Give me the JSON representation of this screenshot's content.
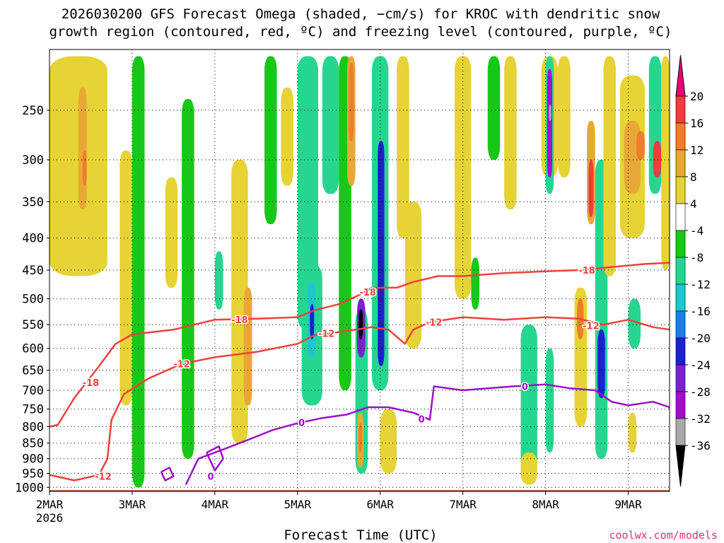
{
  "chart_data": {
    "type": "heatmap",
    "title_line1": "2026030200 GFS Forecast Omega (shaded, −cm/s) for KROC with dendritic snow",
    "title_line2": "growth region (contoured, red, ºC) and freezing level (contoured, purple, ºC)",
    "xlabel": "Forecast Time (UTC)",
    "ylabel": "",
    "credit": "coolwx.com/models",
    "x_start_label": "2MAR",
    "x_start_year": "2026",
    "x_ticks": [
      {
        "day": 0,
        "label": "2MAR"
      },
      {
        "day": 1,
        "label": "3MAR"
      },
      {
        "day": 2,
        "label": "4MAR"
      },
      {
        "day": 3,
        "label": "5MAR"
      },
      {
        "day": 4,
        "label": "6MAR"
      },
      {
        "day": 5,
        "label": "7MAR"
      },
      {
        "day": 6,
        "label": "8MAR"
      },
      {
        "day": 7,
        "label": "9MAR"
      }
    ],
    "xlim_days": [
      0,
      7.5
    ],
    "y_ticks": [
      250,
      300,
      350,
      400,
      450,
      500,
      550,
      600,
      650,
      700,
      750,
      800,
      850,
      900,
      950,
      1000
    ],
    "ylim_hpa": [
      200,
      1015
    ],
    "y_scale": "log",
    "colorbar": {
      "labels": [
        "20",
        "16",
        "12",
        "8",
        "4",
        "-4",
        "-8",
        "-12",
        "-16",
        "-20",
        "-24",
        "-28",
        "-32",
        "-36"
      ],
      "colors": [
        "#ee0077",
        "#ef3c3c",
        "#ee7d2c",
        "#e8a836",
        "#e6d336",
        "#ffffff",
        "#18c818",
        "#26d690",
        "#1fc6cc",
        "#1e7fe6",
        "#1c22cc",
        "#7a22cc",
        "#a010c8",
        "#a8a8a8",
        "#000000"
      ]
    },
    "ground_color": "#a05028",
    "shading_regions": [
      {
        "d0": 0.0,
        "d1": 0.7,
        "p0": 205,
        "p1": 460,
        "value": 5
      },
      {
        "d0": 0.35,
        "d1": 0.45,
        "p0": 230,
        "p1": 360,
        "value": 10
      },
      {
        "d0": 0.4,
        "d1": 0.45,
        "p0": 290,
        "p1": 330,
        "value": 14
      },
      {
        "d0": 0.85,
        "d1": 1.0,
        "p0": 290,
        "p1": 740,
        "value": 5
      },
      {
        "d0": 1.0,
        "d1": 1.15,
        "p0": 205,
        "p1": 1000,
        "value": -6
      },
      {
        "d0": 1.4,
        "d1": 1.55,
        "p0": 320,
        "p1": 480,
        "value": 5
      },
      {
        "d0": 1.6,
        "d1": 1.75,
        "p0": 240,
        "p1": 900,
        "value": -6
      },
      {
        "d0": 2.0,
        "d1": 2.1,
        "p0": 420,
        "p1": 520,
        "value": -10
      },
      {
        "d0": 2.2,
        "d1": 2.4,
        "p0": 300,
        "p1": 850,
        "value": 6
      },
      {
        "d0": 2.35,
        "d1": 2.45,
        "p0": 480,
        "p1": 740,
        "value": 10
      },
      {
        "d0": 2.6,
        "d1": 2.75,
        "p0": 205,
        "p1": 380,
        "value": -6
      },
      {
        "d0": 2.8,
        "d1": 2.95,
        "p0": 230,
        "p1": 330,
        "value": 5
      },
      {
        "d0": 3.0,
        "d1": 3.25,
        "p0": 205,
        "p1": 560,
        "value": -8
      },
      {
        "d0": 3.05,
        "d1": 3.3,
        "p0": 440,
        "p1": 740,
        "value": -8
      },
      {
        "d0": 3.12,
        "d1": 3.22,
        "p0": 470,
        "p1": 620,
        "value": -15
      },
      {
        "d0": 3.15,
        "d1": 3.2,
        "p0": 510,
        "p1": 580,
        "value": -22
      },
      {
        "d0": 3.3,
        "d1": 3.5,
        "p0": 205,
        "p1": 340,
        "value": -8
      },
      {
        "d0": 3.5,
        "d1": 3.65,
        "p0": 205,
        "p1": 700,
        "value": -6
      },
      {
        "d0": 3.6,
        "d1": 3.7,
        "p0": 205,
        "p1": 330,
        "value": 10
      },
      {
        "d0": 3.62,
        "d1": 3.68,
        "p0": 210,
        "p1": 280,
        "value": 14
      },
      {
        "d0": 3.7,
        "d1": 3.85,
        "p0": 520,
        "p1": 950,
        "value": -8
      },
      {
        "d0": 3.72,
        "d1": 3.82,
        "p0": 500,
        "p1": 620,
        "value": -24
      },
      {
        "d0": 3.74,
        "d1": 3.79,
        "p0": 520,
        "p1": 580,
        "value": -40
      },
      {
        "d0": 3.72,
        "d1": 3.8,
        "p0": 760,
        "p1": 930,
        "value": 10
      },
      {
        "d0": 3.74,
        "d1": 3.78,
        "p0": 790,
        "p1": 880,
        "value": 14
      },
      {
        "d0": 3.9,
        "d1": 4.1,
        "p0": 205,
        "p1": 700,
        "value": -10
      },
      {
        "d0": 3.97,
        "d1": 4.05,
        "p0": 280,
        "p1": 640,
        "value": -22
      },
      {
        "d0": 4.0,
        "d1": 4.2,
        "p0": 750,
        "p1": 950,
        "value": 6
      },
      {
        "d0": 4.2,
        "d1": 4.35,
        "p0": 205,
        "p1": 400,
        "value": 5
      },
      {
        "d0": 4.3,
        "d1": 4.5,
        "p0": 350,
        "p1": 600,
        "value": 5
      },
      {
        "d0": 4.9,
        "d1": 5.1,
        "p0": 205,
        "p1": 500,
        "value": 5
      },
      {
        "d0": 5.1,
        "d1": 5.2,
        "p0": 430,
        "p1": 520,
        "value": -6
      },
      {
        "d0": 5.3,
        "d1": 5.45,
        "p0": 205,
        "p1": 300,
        "value": -6
      },
      {
        "d0": 5.5,
        "d1": 5.65,
        "p0": 205,
        "p1": 360,
        "value": 5
      },
      {
        "d0": 5.7,
        "d1": 5.9,
        "p0": 550,
        "p1": 950,
        "value": -8
      },
      {
        "d0": 5.7,
        "d1": 5.9,
        "p0": 880,
        "p1": 990,
        "value": 6
      },
      {
        "d0": 5.95,
        "d1": 6.15,
        "p0": 205,
        "p1": 320,
        "value": 5
      },
      {
        "d0": 6.0,
        "d1": 6.1,
        "p0": 205,
        "p1": 340,
        "value": -10
      },
      {
        "d0": 6.02,
        "d1": 6.08,
        "p0": 215,
        "p1": 320,
        "value": -28
      },
      {
        "d0": 6.04,
        "d1": 6.07,
        "p0": 245,
        "p1": 260,
        "value": -34
      },
      {
        "d0": 6.0,
        "d1": 6.1,
        "p0": 600,
        "p1": 880,
        "value": -8
      },
      {
        "d0": 6.15,
        "d1": 6.3,
        "p0": 205,
        "p1": 320,
        "value": 5
      },
      {
        "d0": 6.35,
        "d1": 6.5,
        "p0": 480,
        "p1": 800,
        "value": 6
      },
      {
        "d0": 6.38,
        "d1": 6.46,
        "p0": 500,
        "p1": 580,
        "value": 12
      },
      {
        "d0": 6.5,
        "d1": 6.6,
        "p0": 260,
        "p1": 380,
        "value": 8
      },
      {
        "d0": 6.52,
        "d1": 6.58,
        "p0": 300,
        "p1": 370,
        "value": 18
      },
      {
        "d0": 6.6,
        "d1": 6.75,
        "p0": 300,
        "p1": 900,
        "value": -8
      },
      {
        "d0": 6.63,
        "d1": 6.72,
        "p0": 560,
        "p1": 720,
        "value": -20
      },
      {
        "d0": 6.7,
        "d1": 6.85,
        "p0": 205,
        "p1": 460,
        "value": 5
      },
      {
        "d0": 6.9,
        "d1": 7.2,
        "p0": 220,
        "p1": 400,
        "value": 6
      },
      {
        "d0": 6.95,
        "d1": 7.15,
        "p0": 260,
        "p1": 340,
        "value": 10
      },
      {
        "d0": 7.1,
        "d1": 7.2,
        "p0": 270,
        "p1": 300,
        "value": 14
      },
      {
        "d0": 7.25,
        "d1": 7.4,
        "p0": 205,
        "p1": 340,
        "value": -8
      },
      {
        "d0": 7.3,
        "d1": 7.4,
        "p0": 280,
        "p1": 320,
        "value": 16
      },
      {
        "d0": 7.0,
        "d1": 7.15,
        "p0": 500,
        "p1": 600,
        "value": -8
      },
      {
        "d0": 7.0,
        "d1": 7.1,
        "p0": 760,
        "p1": 880,
        "value": 6
      },
      {
        "d0": 7.4,
        "d1": 7.5,
        "p0": 205,
        "p1": 450,
        "value": 6
      }
    ],
    "contours": [
      {
        "name": "-18C",
        "color": "#ef4040",
        "label": "-18",
        "points": [
          [
            0.0,
            800
          ],
          [
            0.1,
            795
          ],
          [
            0.3,
            720
          ],
          [
            0.6,
            640
          ],
          [
            0.8,
            590
          ],
          [
            1.0,
            570
          ],
          [
            1.5,
            560
          ],
          [
            2.0,
            540
          ],
          [
            2.5,
            538
          ],
          [
            3.0,
            535
          ],
          [
            3.2,
            522
          ],
          [
            3.5,
            510
          ],
          [
            3.72,
            495
          ],
          [
            3.9,
            480
          ],
          [
            4.2,
            480
          ],
          [
            4.4,
            470
          ],
          [
            4.7,
            460
          ],
          [
            5.0,
            460
          ],
          [
            5.5,
            455
          ],
          [
            6.0,
            452
          ],
          [
            6.4,
            450
          ],
          [
            6.8,
            445
          ],
          [
            7.2,
            440
          ],
          [
            7.5,
            438
          ]
        ],
        "labels": [
          [
            0.5,
            680
          ],
          [
            2.3,
            540
          ],
          [
            3.85,
            488
          ],
          [
            6.5,
            450
          ]
        ]
      },
      {
        "name": "-12C",
        "color": "#ef4040",
        "label": "-12",
        "points": [
          [
            0.0,
            955
          ],
          [
            0.3,
            975
          ],
          [
            0.6,
            955
          ],
          [
            0.7,
            900
          ],
          [
            0.75,
            780
          ],
          [
            0.9,
            710
          ],
          [
            1.2,
            670
          ],
          [
            1.6,
            635
          ],
          [
            2.0,
            620
          ],
          [
            2.5,
            608
          ],
          [
            3.0,
            590
          ],
          [
            3.2,
            572
          ],
          [
            3.5,
            565
          ],
          [
            3.7,
            560
          ],
          [
            3.9,
            555
          ],
          [
            4.1,
            560
          ],
          [
            4.3,
            590
          ],
          [
            4.4,
            560
          ],
          [
            4.6,
            545
          ],
          [
            5.0,
            535
          ],
          [
            5.5,
            540
          ],
          [
            6.0,
            535
          ],
          [
            6.4,
            538
          ],
          [
            6.7,
            550
          ],
          [
            7.0,
            540
          ],
          [
            7.3,
            555
          ],
          [
            7.5,
            560
          ]
        ],
        "labels": [
          [
            0.65,
            960
          ],
          [
            1.6,
            635
          ],
          [
            3.35,
            568
          ],
          [
            4.65,
            545
          ],
          [
            6.55,
            552
          ]
        ]
      },
      {
        "name": "0C",
        "color": "#9c10c8",
        "label": "0",
        "points": [
          [
            1.65,
            990
          ],
          [
            1.8,
            900
          ],
          [
            2.0,
            880
          ],
          [
            2.2,
            860
          ],
          [
            2.4,
            840
          ],
          [
            2.7,
            810
          ],
          [
            3.0,
            790
          ],
          [
            3.3,
            775
          ],
          [
            3.6,
            765
          ],
          [
            3.85,
            745
          ],
          [
            4.1,
            745
          ],
          [
            4.4,
            760
          ],
          [
            4.6,
            780
          ],
          [
            4.65,
            690
          ],
          [
            5.0,
            700
          ],
          [
            5.3,
            695
          ],
          [
            5.6,
            690
          ],
          [
            6.0,
            685
          ],
          [
            6.3,
            695
          ],
          [
            6.6,
            700
          ],
          [
            6.8,
            730
          ],
          [
            7.0,
            740
          ],
          [
            7.3,
            730
          ],
          [
            7.5,
            745
          ]
        ],
        "labels": [
          [
            3.05,
            788
          ],
          [
            4.5,
            778
          ],
          [
            5.75,
            690
          ],
          [
            1.95,
            960
          ]
        ]
      },
      {
        "name": "0C-blob",
        "color": "#9c10c8",
        "label": "",
        "points": [
          [
            1.35,
            945
          ],
          [
            1.45,
            930
          ],
          [
            1.5,
            960
          ],
          [
            1.4,
            975
          ],
          [
            1.35,
            945
          ]
        ],
        "labels": []
      },
      {
        "name": "0C-blob2",
        "color": "#9c10c8",
        "label": "",
        "points": [
          [
            1.9,
            880
          ],
          [
            2.05,
            860
          ],
          [
            2.1,
            900
          ],
          [
            2.0,
            940
          ],
          [
            1.9,
            880
          ]
        ],
        "labels": []
      }
    ]
  }
}
